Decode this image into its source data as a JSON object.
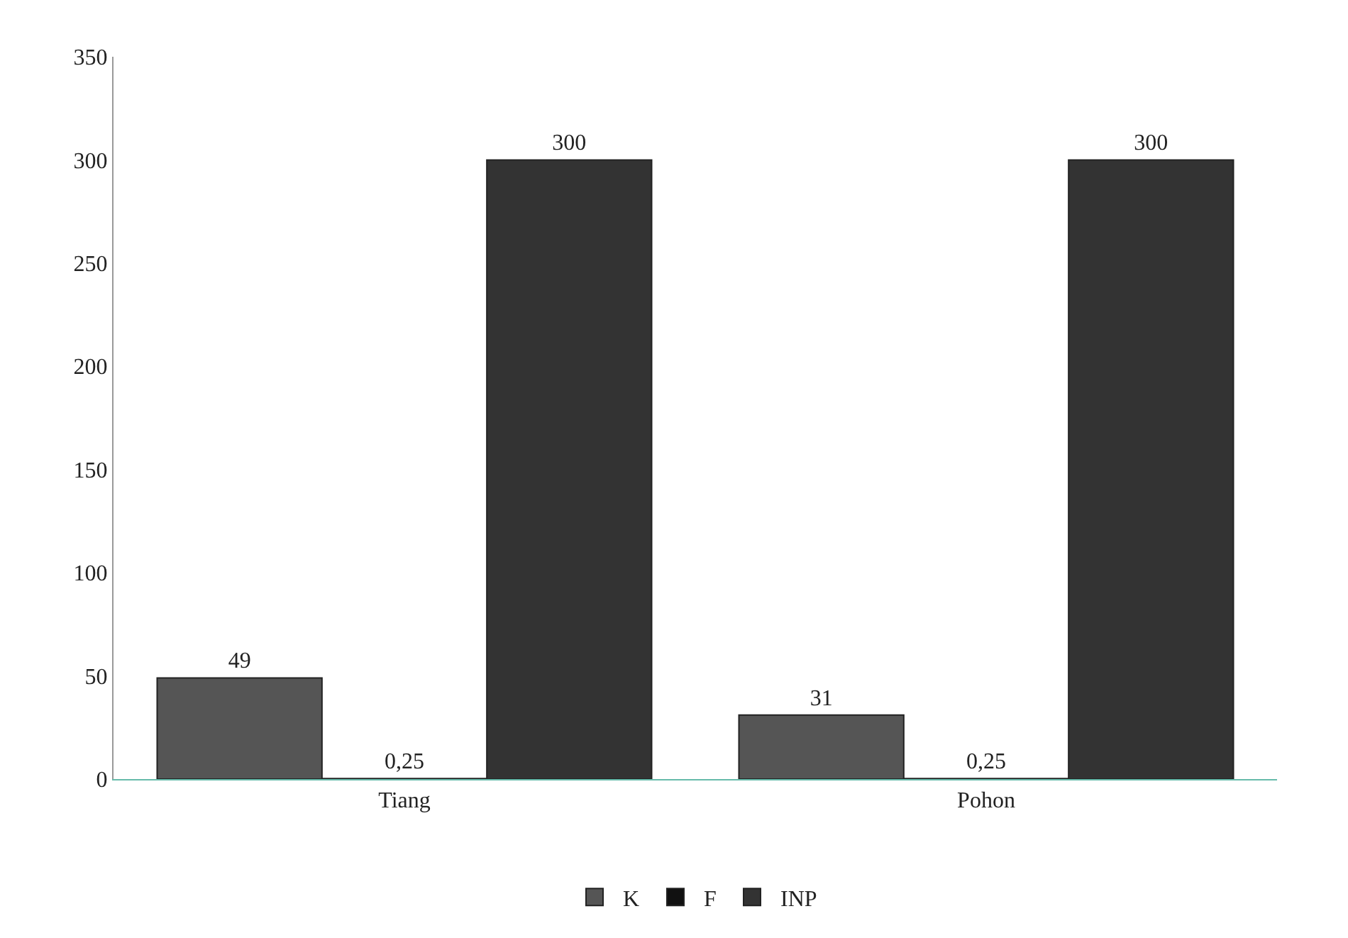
{
  "chart_data": {
    "type": "bar",
    "categories": [
      "Tiang",
      "Pohon"
    ],
    "series": [
      {
        "name": "K",
        "color": "#555555",
        "values": [
          49,
          31
        ],
        "value_labels": [
          "49",
          "31"
        ]
      },
      {
        "name": "F",
        "color": "#111111",
        "values": [
          0.25,
          0.25
        ],
        "value_labels": [
          "0,25",
          "0,25"
        ]
      },
      {
        "name": "INP",
        "color": "#333333",
        "values": [
          300,
          300
        ],
        "value_labels": [
          "300",
          "300"
        ]
      }
    ],
    "ylim": [
      0,
      350
    ],
    "yticks": [
      0,
      50,
      100,
      150,
      200,
      250,
      300,
      350
    ],
    "legend": "bottom"
  }
}
